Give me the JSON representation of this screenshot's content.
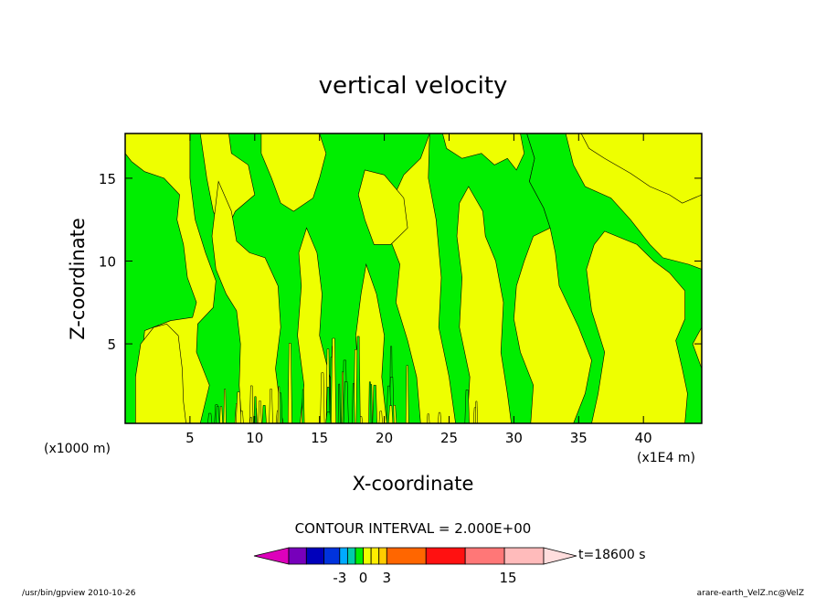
{
  "chart_data": {
    "type": "heatmap",
    "title": "vertical velocity",
    "xlabel": "X-coordinate",
    "ylabel": "Z-coordinate",
    "x_unit_left": "(x1000 m)",
    "x_unit_right": "(x1E4 m)",
    "xlim": [
      0,
      44.5
    ],
    "ylim": [
      0.2,
      17.7
    ],
    "x_ticks": [
      5,
      10,
      15,
      20,
      25,
      30,
      35,
      40
    ],
    "y_ticks": [
      5,
      10,
      15
    ],
    "colors": {
      "positive_small": "#eeff00",
      "negative_small": "#00ee00",
      "contour_line": "#000000"
    },
    "green_regions": [
      {
        "name": "left-column",
        "points": [
          [
            0.0,
            16.5
          ],
          [
            0.5,
            16.0
          ],
          [
            1.5,
            15.4
          ],
          [
            3.0,
            15.0
          ],
          [
            4.2,
            14.0
          ],
          [
            4.0,
            12.5
          ],
          [
            4.5,
            11.0
          ],
          [
            4.8,
            9.0
          ],
          [
            5.5,
            7.5
          ],
          [
            5.2,
            6.6
          ],
          [
            3.5,
            6.4
          ],
          [
            1.5,
            5.8
          ],
          [
            1.2,
            3.5
          ],
          [
            1.4,
            1.0
          ],
          [
            1.8,
            0.2
          ],
          [
            0.0,
            0.2
          ]
        ]
      },
      {
        "name": "central-band",
        "points": [
          [
            5.0,
            17.7
          ],
          [
            23.5,
            17.7
          ],
          [
            22.8,
            16.2
          ],
          [
            21.5,
            15.2
          ],
          [
            20.8,
            14.0
          ],
          [
            20.0,
            12.5
          ],
          [
            20.5,
            11.2
          ],
          [
            21.2,
            9.8
          ],
          [
            20.9,
            7.5
          ],
          [
            21.8,
            5.2
          ],
          [
            22.5,
            3.0
          ],
          [
            22.8,
            0.2
          ],
          [
            5.8,
            0.2
          ],
          [
            6.5,
            2.5
          ],
          [
            5.5,
            4.5
          ],
          [
            5.6,
            6.2
          ],
          [
            6.8,
            7.2
          ],
          [
            7.0,
            8.8
          ],
          [
            6.2,
            10.5
          ],
          [
            5.4,
            12.5
          ],
          [
            5.0,
            15.0
          ]
        ]
      },
      {
        "name": "center-right-band",
        "points": [
          [
            23.5,
            17.7
          ],
          [
            31.0,
            17.7
          ],
          [
            31.6,
            16.2
          ],
          [
            31.2,
            14.8
          ],
          [
            32.3,
            13.2
          ],
          [
            32.8,
            12.0
          ],
          [
            31.5,
            11.5
          ],
          [
            30.8,
            10.0
          ],
          [
            30.2,
            8.5
          ],
          [
            30.0,
            6.5
          ],
          [
            30.5,
            4.5
          ],
          [
            31.5,
            2.5
          ],
          [
            31.3,
            0.2
          ],
          [
            25.5,
            0.2
          ],
          [
            25.0,
            3.0
          ],
          [
            24.2,
            6.0
          ],
          [
            24.4,
            9.0
          ],
          [
            24.0,
            12.5
          ],
          [
            23.4,
            15.0
          ]
        ]
      },
      {
        "name": "right-band",
        "points": [
          [
            31.0,
            17.7
          ],
          [
            34.0,
            17.7
          ],
          [
            34.6,
            15.8
          ],
          [
            35.5,
            14.5
          ],
          [
            37.5,
            13.8
          ],
          [
            39.0,
            12.5
          ],
          [
            40.5,
            11.0
          ],
          [
            41.5,
            10.2
          ],
          [
            43.5,
            9.8
          ],
          [
            44.5,
            9.5
          ],
          [
            44.5,
            6.0
          ],
          [
            43.8,
            5.0
          ],
          [
            44.5,
            3.5
          ],
          [
            44.5,
            0.2
          ],
          [
            34.6,
            0.2
          ],
          [
            35.5,
            2.0
          ],
          [
            36.0,
            4.0
          ],
          [
            35.0,
            6.0
          ],
          [
            33.5,
            8.5
          ],
          [
            33.2,
            10.5
          ],
          [
            32.8,
            12.0
          ],
          [
            32.3,
            13.2
          ],
          [
            31.2,
            14.8
          ],
          [
            31.6,
            16.2
          ]
        ]
      }
    ],
    "yellow_regions": [
      {
        "name": "left-lower-patch",
        "points": [
          [
            0.8,
            0.2
          ],
          [
            0.8,
            3.0
          ],
          [
            1.2,
            5.0
          ],
          [
            2.2,
            6.0
          ],
          [
            3.2,
            6.2
          ],
          [
            4.1,
            5.5
          ],
          [
            4.4,
            3.5
          ],
          [
            4.5,
            1.5
          ],
          [
            4.7,
            0.2
          ]
        ]
      },
      {
        "name": "upper-left-patch",
        "points": [
          [
            5.8,
            17.7
          ],
          [
            8.0,
            17.7
          ],
          [
            8.2,
            16.5
          ],
          [
            9.5,
            15.8
          ],
          [
            10.0,
            14.0
          ],
          [
            8.5,
            13.0
          ],
          [
            7.6,
            11.5
          ],
          [
            6.8,
            13.0
          ],
          [
            6.3,
            15.0
          ]
        ]
      },
      {
        "name": "mid-left-column",
        "points": [
          [
            7.2,
            14.8
          ],
          [
            8.2,
            13.0
          ],
          [
            8.6,
            11.2
          ],
          [
            9.6,
            10.5
          ],
          [
            10.8,
            10.2
          ],
          [
            11.8,
            8.5
          ],
          [
            12.0,
            6.0
          ],
          [
            11.6,
            3.5
          ],
          [
            12.0,
            1.0
          ],
          [
            12.2,
            0.2
          ],
          [
            9.0,
            0.2
          ],
          [
            8.8,
            2.5
          ],
          [
            8.9,
            5.0
          ],
          [
            8.6,
            7.0
          ],
          [
            7.8,
            8.0
          ],
          [
            7.0,
            9.5
          ],
          [
            6.7,
            11.5
          ]
        ]
      },
      {
        "name": "mid-upper-patch",
        "points": [
          [
            10.5,
            17.7
          ],
          [
            15.0,
            17.7
          ],
          [
            15.5,
            16.5
          ],
          [
            15.0,
            15.0
          ],
          [
            14.5,
            13.8
          ],
          [
            13.0,
            13.0
          ],
          [
            12.0,
            13.5
          ],
          [
            11.3,
            15.0
          ],
          [
            10.5,
            16.5
          ]
        ]
      },
      {
        "name": "center-upper-patch",
        "points": [
          [
            18.5,
            15.5
          ],
          [
            20.0,
            15.2
          ],
          [
            21.5,
            13.8
          ],
          [
            21.8,
            12.0
          ],
          [
            20.5,
            11.0
          ],
          [
            19.2,
            11.0
          ],
          [
            18.5,
            12.5
          ],
          [
            18.0,
            14.0
          ]
        ]
      },
      {
        "name": "center-lower-column",
        "points": [
          [
            14.0,
            12.0
          ],
          [
            14.8,
            10.5
          ],
          [
            15.2,
            8.0
          ],
          [
            15.0,
            5.5
          ],
          [
            15.8,
            3.0
          ],
          [
            15.5,
            0.2
          ],
          [
            13.5,
            0.2
          ],
          [
            13.8,
            2.5
          ],
          [
            13.3,
            5.5
          ],
          [
            13.6,
            8.5
          ],
          [
            13.4,
            10.5
          ]
        ]
      },
      {
        "name": "center-right-column",
        "points": [
          [
            18.6,
            9.8
          ],
          [
            19.4,
            8.0
          ],
          [
            20.0,
            5.5
          ],
          [
            19.8,
            3.0
          ],
          [
            20.2,
            0.2
          ],
          [
            17.8,
            0.2
          ],
          [
            18.0,
            3.0
          ],
          [
            17.8,
            5.5
          ],
          [
            18.2,
            8.0
          ]
        ]
      },
      {
        "name": "right-center-column",
        "points": [
          [
            26.5,
            14.5
          ],
          [
            27.6,
            13.0
          ],
          [
            27.8,
            11.5
          ],
          [
            28.6,
            10.0
          ],
          [
            29.2,
            7.5
          ],
          [
            29.0,
            4.5
          ],
          [
            29.5,
            2.0
          ],
          [
            29.8,
            0.2
          ],
          [
            26.4,
            0.2
          ],
          [
            26.6,
            3.0
          ],
          [
            25.8,
            6.0
          ],
          [
            26.0,
            9.0
          ],
          [
            25.6,
            11.5
          ],
          [
            25.8,
            13.5
          ]
        ]
      },
      {
        "name": "upper-right-patch",
        "points": [
          [
            24.5,
            17.7
          ],
          [
            30.5,
            17.7
          ],
          [
            30.8,
            16.5
          ],
          [
            30.2,
            15.5
          ],
          [
            29.5,
            16.2
          ],
          [
            28.5,
            15.8
          ],
          [
            27.5,
            16.5
          ],
          [
            26.0,
            16.2
          ],
          [
            24.8,
            16.8
          ]
        ]
      },
      {
        "name": "far-right-patch",
        "points": [
          [
            35.2,
            17.7
          ],
          [
            44.5,
            17.7
          ],
          [
            44.5,
            14.0
          ],
          [
            43.0,
            13.5
          ],
          [
            42.0,
            14.0
          ],
          [
            40.5,
            14.5
          ],
          [
            39.0,
            15.3
          ],
          [
            37.0,
            16.2
          ],
          [
            35.8,
            16.8
          ]
        ]
      },
      {
        "name": "right-lower-patch",
        "points": [
          [
            37.0,
            11.8
          ],
          [
            39.5,
            11.0
          ],
          [
            40.8,
            10.0
          ],
          [
            42.0,
            9.3
          ],
          [
            43.2,
            8.2
          ],
          [
            43.2,
            6.5
          ],
          [
            42.5,
            5.2
          ],
          [
            43.0,
            3.5
          ],
          [
            43.4,
            2.0
          ],
          [
            43.2,
            0.2
          ],
          [
            36.0,
            0.2
          ],
          [
            36.5,
            2.0
          ],
          [
            37.0,
            4.5
          ],
          [
            36.0,
            7.0
          ],
          [
            35.6,
            9.5
          ],
          [
            36.2,
            11.0
          ]
        ]
      }
    ],
    "contour_interval_text": "CONTOUR INTERVAL = 2.000E+00",
    "colorbar": {
      "colors": [
        "#dd00bb",
        "#7700bb",
        "#0000bb",
        "#0033dd",
        "#00aaff",
        "#00ccaa",
        "#00ee00",
        "#eeff00",
        "#ffee00",
        "#ffcc00",
        "#ff6600",
        "#ff1111",
        "#ff7777",
        "#ffbbbb",
        "#ffdddd"
      ],
      "tick_labels": [
        "-3",
        "0",
        "3",
        "15"
      ],
      "tick_values": [
        -3,
        0,
        3,
        15
      ],
      "time_label": "t=18600 s"
    },
    "footer_left": "/usr/bin/gpview  2010-10-26",
    "footer_right": "arare-earth_VelZ.nc@VelZ"
  }
}
